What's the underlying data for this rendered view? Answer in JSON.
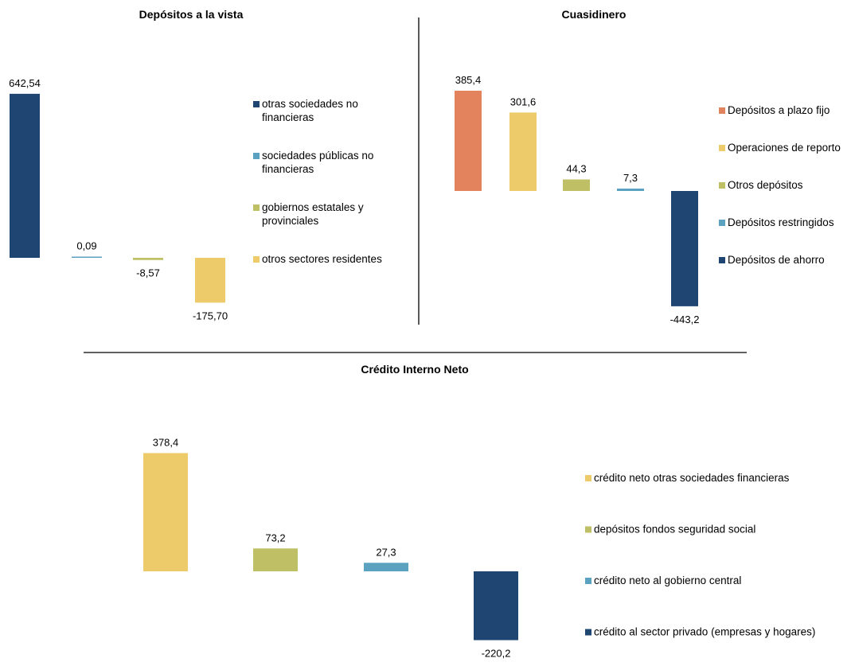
{
  "chart_data": [
    {
      "type": "bar",
      "title": "Depósitos a la vista",
      "decimals": 2,
      "categories": [
        "otras sociedades no financieras",
        "sociedades públicas no financieras",
        "gobiernos estatales y provinciales",
        "otros sectores residentes"
      ],
      "values": [
        642.54,
        0.09,
        -8.57,
        -175.7
      ],
      "value_labels": [
        "642,54",
        "0,09",
        "-8,57",
        "-175,70"
      ],
      "colors": [
        "#1f4672",
        "#5aa2c0",
        "#bfbf66",
        "#eecb6a"
      ],
      "legend": [
        [
          "otras sociedades no",
          "financieras"
        ],
        [
          "sociedades públicas no",
          "financieras"
        ],
        [
          "gobiernos estatales y",
          "provinciales"
        ],
        [
          "otros sectores residentes"
        ]
      ],
      "legend_placement": "right",
      "grid": false
    },
    {
      "type": "bar",
      "title": "Cuasidinero",
      "decimals": 1,
      "categories": [
        "Depósitos a plazo fijo",
        "Operaciones de reporto",
        "Otros depósitos",
        "Depósitos restringidos",
        "Depósitos de ahorro"
      ],
      "values": [
        385.4,
        301.6,
        44.3,
        7.3,
        -443.2
      ],
      "value_labels": [
        "385,4",
        "301,6",
        "44,3",
        "7,3",
        "-443,2"
      ],
      "colors": [
        "#e3835d",
        "#eecb6a",
        "#bfbf66",
        "#5aa2c0",
        "#1f4672"
      ],
      "legend": [
        [
          "Depósitos a plazo fijo"
        ],
        [
          "Operaciones de reporto"
        ],
        [
          "Otros depósitos"
        ],
        [
          "Depósitos restringidos"
        ],
        [
          "Depósitos de ahorro"
        ]
      ],
      "legend_placement": "right",
      "grid": false
    },
    {
      "type": "bar",
      "title": "Crédito Interno Neto",
      "decimals": 1,
      "categories": [
        "crédito neto otras sociedades financieras",
        "depósitos fondos seguridad social",
        "crédito neto al gobierno central",
        "crédito al sector privado (empresas y hogares)"
      ],
      "values": [
        378.4,
        73.2,
        27.3,
        -220.2
      ],
      "value_labels": [
        "378,4",
        "73,2",
        "27,3",
        "-220,2"
      ],
      "colors": [
        "#eecb6a",
        "#bfbf66",
        "#5aa2c0",
        "#1f4672"
      ],
      "legend": [
        [
          "crédito neto otras sociedades financieras"
        ],
        [
          "depósitos fondos seguridad social"
        ],
        [
          "crédito neto al gobierno central"
        ],
        [
          "crédito al sector privado (empresas y hogares)"
        ]
      ],
      "legend_placement": "right",
      "grid": false
    }
  ]
}
